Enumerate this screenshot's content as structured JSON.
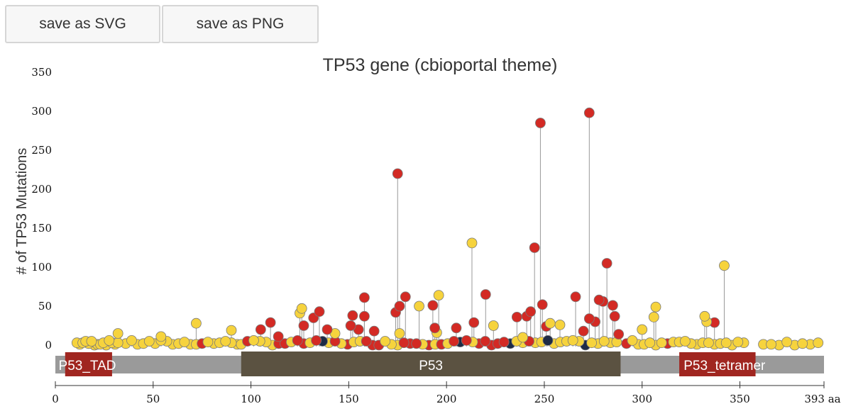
{
  "toolbar": {
    "save_svg_label": "save as SVG",
    "save_png_label": "save as PNG"
  },
  "colors": {
    "missense": "#f6d33d",
    "truncating": "#d32a24",
    "inframe": "#1e2b46",
    "stem": "#999999",
    "backbone": "#9a9a9a",
    "p53_domain": "#5b5241",
    "small_domain": "#a02620"
  },
  "chart_data": {
    "type": "lollipop",
    "title": "TP53 gene (cbioportal theme)",
    "ylabel": "# of TP53 Mutations",
    "ylim": [
      0,
      350
    ],
    "yticks": [
      "0",
      "50",
      "100",
      "150",
      "200",
      "250",
      "300",
      "350"
    ],
    "xlim": [
      0,
      393
    ],
    "xticks": [
      "0",
      "50",
      "100",
      "150",
      "200",
      "250",
      "300",
      "350"
    ],
    "xend_label": "393 aa",
    "domains": [
      {
        "name": "P53_TAD",
        "start": 5,
        "end": 29,
        "type": "small"
      },
      {
        "name": "P53",
        "start": 95,
        "end": 289,
        "type": "main"
      },
      {
        "name": "P53_tetramer",
        "start": 319,
        "end": 358,
        "type": "small"
      }
    ],
    "mutations": [
      {
        "pos": 273,
        "count": 298,
        "type": "truncating"
      },
      {
        "pos": 248,
        "count": 285,
        "type": "truncating"
      },
      {
        "pos": 175,
        "count": 220,
        "type": "truncating"
      },
      {
        "pos": 213,
        "count": 131,
        "type": "missense"
      },
      {
        "pos": 245,
        "count": 125,
        "type": "truncating"
      },
      {
        "pos": 282,
        "count": 105,
        "type": "truncating"
      },
      {
        "pos": 342,
        "count": 102,
        "type": "missense"
      },
      {
        "pos": 220,
        "count": 65,
        "type": "truncating"
      },
      {
        "pos": 196,
        "count": 64,
        "type": "missense"
      },
      {
        "pos": 266,
        "count": 62,
        "type": "truncating"
      },
      {
        "pos": 179,
        "count": 62,
        "type": "truncating"
      },
      {
        "pos": 158,
        "count": 61,
        "type": "truncating"
      },
      {
        "pos": 278,
        "count": 58,
        "type": "truncating"
      },
      {
        "pos": 280,
        "count": 56,
        "type": "truncating"
      },
      {
        "pos": 249,
        "count": 52,
        "type": "truncating"
      },
      {
        "pos": 285,
        "count": 51,
        "type": "truncating"
      },
      {
        "pos": 176,
        "count": 50,
        "type": "truncating"
      },
      {
        "pos": 186,
        "count": 50,
        "type": "missense"
      },
      {
        "pos": 193,
        "count": 51,
        "type": "truncating"
      },
      {
        "pos": 307,
        "count": 49,
        "type": "missense"
      },
      {
        "pos": 126,
        "count": 47,
        "type": "missense"
      },
      {
        "pos": 135,
        "count": 43,
        "type": "truncating"
      },
      {
        "pos": 243,
        "count": 43,
        "type": "truncating"
      },
      {
        "pos": 125,
        "count": 41,
        "type": "missense"
      },
      {
        "pos": 174,
        "count": 42,
        "type": "truncating"
      },
      {
        "pos": 152,
        "count": 38,
        "type": "truncating"
      },
      {
        "pos": 158,
        "count": 37,
        "type": "truncating"
      },
      {
        "pos": 241,
        "count": 37,
        "type": "truncating"
      },
      {
        "pos": 286,
        "count": 37,
        "type": "truncating"
      },
      {
        "pos": 332,
        "count": 37,
        "type": "missense"
      },
      {
        "pos": 132,
        "count": 35,
        "type": "truncating"
      },
      {
        "pos": 236,
        "count": 36,
        "type": "truncating"
      },
      {
        "pos": 306,
        "count": 36,
        "type": "missense"
      },
      {
        "pos": 273,
        "count": 34,
        "type": "truncating"
      },
      {
        "pos": 110,
        "count": 29,
        "type": "truncating"
      },
      {
        "pos": 72,
        "count": 28,
        "type": "missense"
      },
      {
        "pos": 253,
        "count": 28,
        "type": "missense"
      },
      {
        "pos": 214,
        "count": 29,
        "type": "truncating"
      },
      {
        "pos": 276,
        "count": 30,
        "type": "truncating"
      },
      {
        "pos": 337,
        "count": 29,
        "type": "truncating"
      },
      {
        "pos": 333,
        "count": 30,
        "type": "missense"
      },
      {
        "pos": 224,
        "count": 25,
        "type": "missense"
      },
      {
        "pos": 258,
        "count": 26,
        "type": "missense"
      },
      {
        "pos": 127,
        "count": 25,
        "type": "truncating"
      },
      {
        "pos": 151,
        "count": 25,
        "type": "truncating"
      },
      {
        "pos": 176,
        "count": 15,
        "type": "missense"
      },
      {
        "pos": 194,
        "count": 22,
        "type": "truncating"
      },
      {
        "pos": 205,
        "count": 22,
        "type": "truncating"
      },
      {
        "pos": 251,
        "count": 24,
        "type": "truncating"
      },
      {
        "pos": 114,
        "count": 11,
        "type": "truncating"
      },
      {
        "pos": 105,
        "count": 20,
        "type": "truncating"
      },
      {
        "pos": 90,
        "count": 19,
        "type": "missense"
      },
      {
        "pos": 139,
        "count": 20,
        "type": "truncating"
      },
      {
        "pos": 300,
        "count": 20,
        "type": "missense"
      },
      {
        "pos": 143,
        "count": 15,
        "type": "missense"
      },
      {
        "pos": 155,
        "count": 20,
        "type": "truncating"
      },
      {
        "pos": 163,
        "count": 18,
        "type": "truncating"
      },
      {
        "pos": 270,
        "count": 18,
        "type": "truncating"
      },
      {
        "pos": 288,
        "count": 14,
        "type": "truncating"
      },
      {
        "pos": 32,
        "count": 15,
        "type": "missense"
      },
      {
        "pos": 54,
        "count": 11,
        "type": "missense"
      },
      {
        "pos": 239,
        "count": 10,
        "type": "missense"
      },
      {
        "pos": 195,
        "count": 16,
        "type": "missense"
      },
      {
        "pos": 0,
        "count": 0,
        "type": "missense"
      }
    ],
    "baseline_points": [
      {
        "start": 11,
        "end": 33,
        "step": 1.5,
        "type": "missense"
      },
      {
        "start": 36,
        "end": 93,
        "step": 3,
        "type": "missense"
      },
      {
        "start": 95,
        "end": 290,
        "step": 3.2,
        "type": "mixed"
      },
      {
        "start": 292,
        "end": 352,
        "step": 3,
        "type": "missense"
      },
      {
        "start": 362,
        "end": 393,
        "step": 4,
        "type": "missense"
      }
    ]
  }
}
